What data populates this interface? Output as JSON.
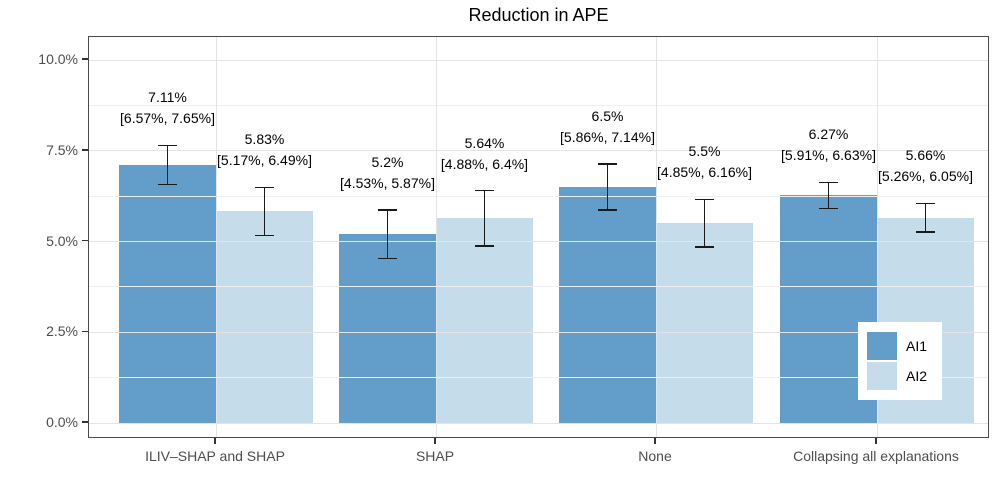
{
  "chart_data": {
    "type": "bar",
    "title": "Reduction in APE",
    "xlabel": "",
    "ylabel": "",
    "categories": [
      "ILIV–SHAP and SHAP",
      "SHAP",
      "None",
      "Collapsing all explanations"
    ],
    "series": [
      {
        "name": "AI1",
        "color": "#629EC9",
        "values": [
          7.11,
          5.2,
          6.5,
          6.27
        ],
        "ci_low": [
          6.57,
          4.53,
          5.86,
          5.91
        ],
        "ci_high": [
          7.65,
          5.87,
          7.14,
          6.63
        ],
        "value_labels": [
          "7.11%",
          "5.2%",
          "6.5%",
          "6.27%"
        ],
        "ci_labels": [
          "[6.57%, 7.65%]",
          "[4.53%, 5.87%]",
          "[5.86%, 7.14%]",
          "[5.91%, 6.63%]"
        ]
      },
      {
        "name": "AI2",
        "color": "#C5DCEB",
        "values": [
          5.83,
          5.64,
          5.5,
          5.66
        ],
        "ci_low": [
          5.17,
          4.88,
          4.85,
          5.26
        ],
        "ci_high": [
          6.49,
          6.4,
          6.16,
          6.05
        ],
        "value_labels": [
          "5.83%",
          "5.64%",
          "5.5%",
          "5.66%"
        ],
        "ci_labels": [
          "[5.17%, 6.49%]",
          "[4.88%, 6.4%]",
          "[4.85%, 6.16%]",
          "[5.26%, 6.05%]"
        ]
      }
    ],
    "y_tick_labels": [
      "0.0%",
      "2.5%",
      "5.0%",
      "7.5%",
      "10.0%"
    ],
    "y_tick_values": [
      0,
      2.5,
      5,
      7.5,
      10
    ],
    "y_minor_values": [
      1.25,
      3.75,
      6.25,
      8.75
    ],
    "ylim": [
      0,
      10.6
    ],
    "grid": {
      "horizontal": true,
      "vertical": true,
      "minor": true,
      "drawn_over_bars": true
    },
    "legend": {
      "position": "inside-bottom-right",
      "items": [
        "AI1",
        "AI2"
      ]
    },
    "error_bar_color": "#1a1a1a",
    "axis_text_color": "#4d4d4d"
  }
}
